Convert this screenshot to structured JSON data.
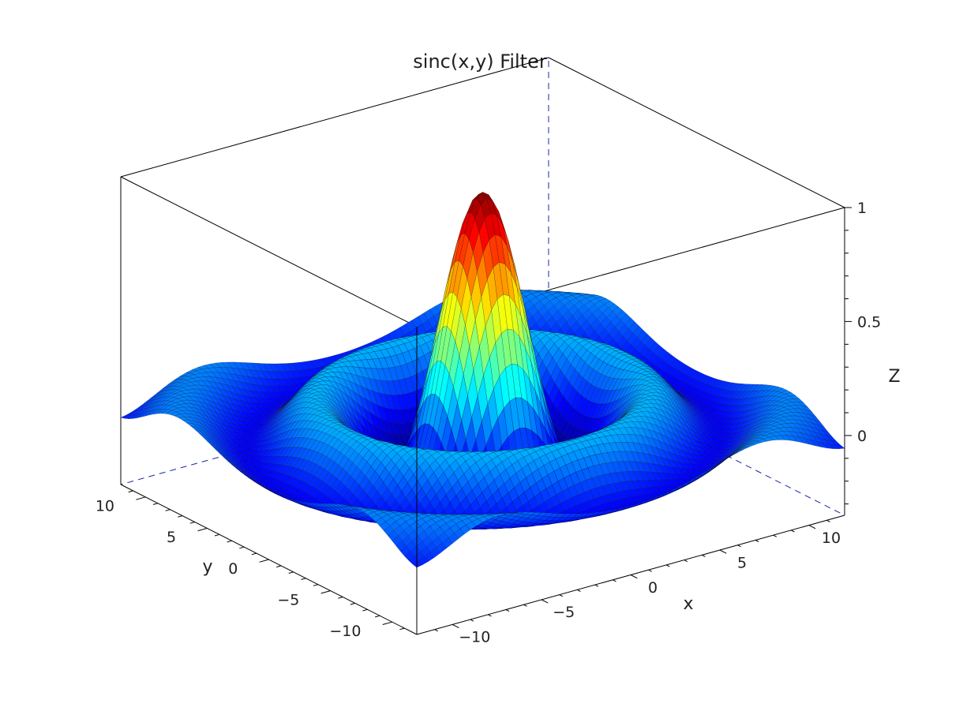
{
  "chart_data": {
    "type": "surface3d",
    "title": "sinc(x,y) Filter",
    "xlabel": "x",
    "ylabel": "y",
    "zlabel": "Z",
    "function": "sinc(sqrt(x^2+y^2))",
    "xlim": [
      -12,
      12
    ],
    "ylim": [
      -12,
      12
    ],
    "zlim": [
      -0.35,
      1
    ],
    "x_ticks": [
      -10,
      -5,
      0,
      5,
      10
    ],
    "y_ticks": [
      -10,
      -5,
      0,
      5,
      10
    ],
    "z_ticks": [
      0,
      0.5,
      1
    ],
    "x_tick_labels": [
      "−10",
      "−5",
      "0",
      "5",
      "10"
    ],
    "y_tick_labels": [
      "−10",
      "−5",
      "0",
      "5",
      "10"
    ],
    "z_tick_labels": [
      "0",
      "0.5",
      "1"
    ],
    "colormap": "jet",
    "peak": {
      "x": 0,
      "y": 0,
      "z": 1
    },
    "grid": false,
    "box": true
  }
}
